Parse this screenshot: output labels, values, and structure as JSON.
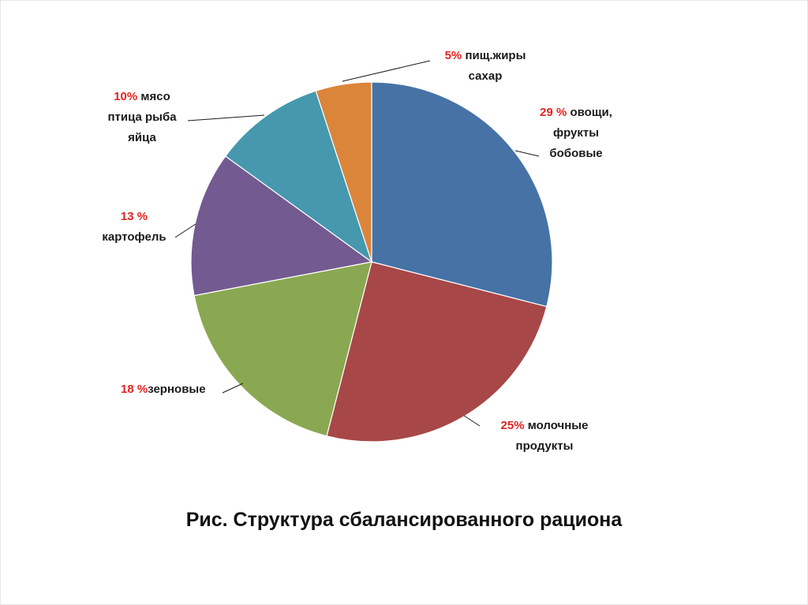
{
  "chart_data": {
    "type": "pie",
    "title": "Рис. Структура сбалансированного рациона",
    "slices": [
      {
        "pct_label": "29 %",
        "label": "овощи, фрукты бобовые",
        "value": 29,
        "color": "#4672a6"
      },
      {
        "pct_label": "25%",
        "label": "молочные продукты",
        "value": 25,
        "color": "#a84747"
      },
      {
        "pct_label": "18 %",
        "label": "зерновые",
        "value": 18,
        "color": "#8aa851"
      },
      {
        "pct_label": "13 %",
        "label": "картофель",
        "value": 13,
        "color": "#735a91"
      },
      {
        "pct_label": "10%",
        "label": "мясо птица рыба яйца",
        "value": 10,
        "color": "#4598ae"
      },
      {
        "pct_label": "5%",
        "label": "пищ.жиры сахар",
        "value": 5,
        "color": "#db853b"
      }
    ]
  },
  "labels": {
    "s0": {
      "pct": "29 %",
      "l1": " овощи,",
      "l2": "фрукты",
      "l3": "бобовые"
    },
    "s1": {
      "pct": "25%",
      "l1": " молочные",
      "l2": "продукты"
    },
    "s2": {
      "pct": "18 %",
      "l1": "зерновые"
    },
    "s3": {
      "pct": "13 %",
      "l1": "картофель"
    },
    "s4": {
      "pct": "10%",
      "l1": " мясо",
      "l2": "птица рыба",
      "l3": "яйца"
    },
    "s5": {
      "pct": "5%",
      "l1": " пищ.жиры",
      "l2": "сахар"
    }
  }
}
